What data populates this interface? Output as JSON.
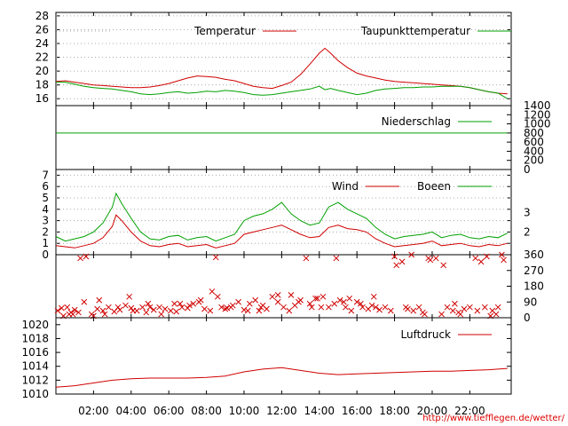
{
  "url": "http://www.tiefflegen.de/wetter/",
  "colors": {
    "red": "#d00000",
    "green": "#00a000",
    "grid": "#888888"
  },
  "chart_data": [
    {
      "type": "line",
      "panel": "temperature",
      "ylim": [
        15,
        28.5
      ],
      "yticks": [
        16,
        18,
        20,
        22,
        24,
        26,
        28
      ],
      "series": [
        {
          "name": "Temperatur",
          "color": "red",
          "x": [
            0,
            0.5,
            1,
            1.5,
            2,
            2.5,
            3,
            3.5,
            4,
            4.5,
            5,
            5.5,
            6,
            6.5,
            7,
            7.5,
            8,
            8.5,
            9,
            9.5,
            10,
            10.5,
            11,
            11.5,
            12,
            12.5,
            13,
            13.5,
            14,
            14.3,
            14.6,
            15,
            15.5,
            16,
            16.5,
            17,
            17.5,
            18,
            18.5,
            19,
            19.5,
            20,
            20.5,
            21,
            21.5,
            22,
            22.5,
            23,
            23.5,
            24
          ],
          "values": [
            18.5,
            18.6,
            18.4,
            18.2,
            18.0,
            17.9,
            17.8,
            17.7,
            17.6,
            17.6,
            17.7,
            17.9,
            18.2,
            18.6,
            19.0,
            19.3,
            19.2,
            19.1,
            18.8,
            18.6,
            18.2,
            17.8,
            17.6,
            17.5,
            17.9,
            18.4,
            19.5,
            21.0,
            22.6,
            23.3,
            22.6,
            21.5,
            20.5,
            19.7,
            19.3,
            19.0,
            18.7,
            18.5,
            18.4,
            18.3,
            18.2,
            18.1,
            18.0,
            17.9,
            17.8,
            17.6,
            17.3,
            17.0,
            16.8,
            16.7
          ]
        },
        {
          "name": "Taupunkttemperatur",
          "color": "green",
          "x": [
            0,
            0.5,
            1,
            1.5,
            2,
            2.5,
            3,
            3.5,
            4,
            4.5,
            5,
            5.5,
            6,
            6.5,
            7,
            7.5,
            8,
            8.5,
            9,
            9.5,
            10,
            10.5,
            11,
            11.5,
            12,
            12.5,
            13,
            13.5,
            14,
            14.3,
            14.6,
            15,
            15.5,
            16,
            16.5,
            17,
            17.5,
            18,
            18.5,
            19,
            19.5,
            20,
            20.5,
            21,
            21.5,
            22,
            22.5,
            23,
            23.5,
            24
          ],
          "values": [
            18.4,
            18.4,
            18.1,
            17.8,
            17.6,
            17.5,
            17.4,
            17.2,
            17.0,
            16.7,
            16.6,
            16.7,
            16.9,
            17.0,
            16.8,
            16.9,
            17.1,
            17.0,
            17.2,
            17.1,
            16.9,
            16.6,
            16.5,
            16.6,
            16.8,
            17.0,
            17.2,
            17.4,
            17.8,
            17.3,
            17.5,
            17.2,
            16.9,
            16.6,
            16.8,
            17.2,
            17.4,
            17.5,
            17.6,
            17.6,
            17.7,
            17.7,
            17.8,
            17.8,
            17.8,
            17.6,
            17.3,
            17.0,
            16.8,
            16.0
          ]
        }
      ]
    },
    {
      "type": "line",
      "panel": "precipitation",
      "ylim": [
        0,
        1400
      ],
      "yticks": [
        0,
        200,
        400,
        600,
        800,
        1000,
        1200,
        1400
      ],
      "series": [
        {
          "name": "Niederschlag",
          "color": "green",
          "x": [
            0,
            24
          ],
          "values": [
            800,
            800
          ]
        }
      ]
    },
    {
      "type": "line",
      "panel": "wind",
      "ylim": [
        0,
        7.5
      ],
      "yticks": [
        0,
        1,
        2,
        3,
        4,
        5,
        6,
        7
      ],
      "right_ticks": [
        {
          "label": "2",
          "value": 2.0
        },
        {
          "label": "3",
          "value": 3.7
        }
      ],
      "series": [
        {
          "name": "Wind",
          "color": "red",
          "x": [
            0,
            0.5,
            1,
            1.5,
            2,
            2.5,
            3,
            3.2,
            3.5,
            4,
            4.5,
            5,
            5.5,
            6,
            6.5,
            7,
            7.5,
            8,
            8.5,
            9,
            9.5,
            10,
            10.5,
            11,
            11.5,
            12,
            12.5,
            13,
            13.5,
            14,
            14.5,
            15,
            15.5,
            16,
            16.5,
            17,
            17.5,
            18,
            18.5,
            19,
            19.5,
            20,
            20.5,
            21,
            21.5,
            22,
            22.5,
            23,
            23.5,
            24
          ],
          "values": [
            0.8,
            0.7,
            0.6,
            0.8,
            1.0,
            1.5,
            2.5,
            3.5,
            3.0,
            2.0,
            1.2,
            0.8,
            0.7,
            0.9,
            1.0,
            0.7,
            0.8,
            0.9,
            0.6,
            0.8,
            1.0,
            1.8,
            2.0,
            2.2,
            2.4,
            2.6,
            2.2,
            1.8,
            1.5,
            1.6,
            2.4,
            2.6,
            2.3,
            2.2,
            2.0,
            1.4,
            1.0,
            0.7,
            0.8,
            0.9,
            1.0,
            1.2,
            0.8,
            0.9,
            1.0,
            0.8,
            0.7,
            0.9,
            0.8,
            1.0
          ]
        },
        {
          "name": "Boeen",
          "color": "green",
          "x": [
            0,
            0.5,
            1,
            1.5,
            2,
            2.5,
            3,
            3.2,
            3.5,
            4,
            4.5,
            5,
            5.5,
            6,
            6.5,
            7,
            7.5,
            8,
            8.5,
            9,
            9.5,
            10,
            10.5,
            11,
            11.5,
            12,
            12.5,
            13,
            13.5,
            14,
            14.5,
            15,
            15.5,
            16,
            16.5,
            17,
            17.5,
            18,
            18.5,
            19,
            19.5,
            20,
            20.5,
            21,
            21.5,
            22,
            22.5,
            23,
            23.5,
            24
          ],
          "values": [
            1.6,
            1.2,
            1.4,
            1.6,
            2.0,
            2.8,
            4.2,
            5.4,
            4.5,
            3.2,
            2.0,
            1.4,
            1.3,
            1.6,
            1.7,
            1.3,
            1.5,
            1.6,
            1.2,
            1.5,
            1.8,
            3.0,
            3.4,
            3.6,
            4.0,
            4.6,
            3.6,
            3.0,
            2.6,
            2.8,
            4.2,
            4.6,
            4.0,
            3.6,
            3.2,
            2.4,
            1.8,
            1.4,
            1.6,
            1.7,
            1.8,
            2.0,
            1.5,
            1.7,
            1.8,
            1.5,
            1.4,
            1.6,
            1.5,
            1.9
          ]
        }
      ]
    },
    {
      "type": "scatter",
      "panel": "wind-direction",
      "ylim": [
        0,
        360
      ],
      "yticks": [
        0,
        90,
        180,
        270,
        360
      ],
      "series": [
        {
          "name": "",
          "color": "red",
          "x": [
            0.1,
            0.3,
            0.6,
            0.8,
            1.0,
            1.3,
            1.6,
            1.9,
            2.2,
            2.5,
            2.8,
            3.1,
            3.4,
            3.7,
            4.0,
            4.3,
            4.6,
            4.9,
            5.2,
            5.5,
            5.8,
            6.1,
            6.4,
            6.7,
            7.0,
            7.3,
            7.6,
            7.9,
            8.2,
            8.5,
            8.8,
            9.1,
            9.4,
            9.7,
            10.0,
            10.3,
            10.6,
            10.9,
            11.2,
            11.5,
            11.8,
            12.1,
            12.4,
            12.7,
            13.0,
            13.3,
            13.6,
            13.9,
            14.2,
            14.5,
            14.8,
            15.1,
            15.4,
            15.7,
            16.0,
            16.3,
            16.6,
            16.9,
            17.2,
            17.5,
            17.8,
            18.1,
            18.4,
            18.7,
            19.0,
            19.3,
            19.6,
            19.9,
            20.2,
            20.5,
            20.8,
            21.1,
            21.4,
            21.7,
            22.0,
            22.3,
            22.6,
            22.9,
            23.2,
            23.5,
            23.8,
            0.4,
            0.7,
            1.2,
            2.0,
            2.6,
            3.3,
            4.1,
            4.8,
            5.6,
            6.3,
            7.1,
            7.7,
            8.6,
            9.3,
            10.2,
            11.0,
            11.8,
            12.9,
            13.5,
            14.1,
            14.9,
            15.6,
            16.2,
            17.0,
            18.0,
            18.9,
            19.8,
            20.6,
            21.5,
            22.4,
            23.1,
            23.7,
            0.9,
            1.5,
            2.3,
            3.9,
            5.0,
            6.6,
            8.3,
            9.0,
            10.8,
            12.5,
            13.8,
            15.3,
            16.8,
            18.6,
            19.5,
            21.2,
            22.8,
            23.4
          ],
          "values": [
            40,
            55,
            60,
            30,
            45,
            340,
            350,
            20,
            50,
            40,
            60,
            35,
            45,
            70,
            55,
            40,
            60,
            80,
            45,
            60,
            50,
            40,
            35,
            60,
            55,
            80,
            90,
            50,
            40,
            345,
            60,
            55,
            70,
            90,
            45,
            80,
            100,
            60,
            50,
            120,
            90,
            60,
            40,
            70,
            100,
            340,
            60,
            110,
            120,
            60,
            80,
            100,
            60,
            40,
            90,
            60,
            50,
            120,
            45,
            60,
            40,
            300,
            320,
            50,
            40,
            60,
            20,
            330,
            340,
            20,
            60,
            40,
            30,
            50,
            60,
            340,
            320,
            350,
            40,
            60,
            330,
            10,
            20,
            30,
            10,
            20,
            60,
            40,
            30,
            20,
            80,
            70,
            100,
            120,
            60,
            40,
            70,
            130,
            90,
            80,
            60,
            340,
            110,
            80,
            60,
            350,
            360,
            340,
            300,
            20,
            40,
            10,
            360,
            20,
            90,
            100,
            120,
            60,
            80,
            150,
            50,
            40,
            130,
            110,
            90,
            70,
            60,
            30,
            80,
            60,
            20
          ]
        }
      ]
    },
    {
      "type": "line",
      "panel": "pressure",
      "ylim": [
        1010,
        1021
      ],
      "yticks": [
        1010,
        1012,
        1014,
        1016,
        1018,
        1020
      ],
      "series": [
        {
          "name": "Luftdruck",
          "color": "red",
          "x": [
            0,
            1,
            2,
            3,
            4,
            5,
            6,
            7,
            8,
            9,
            10,
            11,
            12,
            13,
            14,
            15,
            16,
            17,
            18,
            19,
            20,
            21,
            22,
            23,
            24
          ],
          "values": [
            1011.0,
            1011.2,
            1011.6,
            1012.0,
            1012.2,
            1012.3,
            1012.3,
            1012.3,
            1012.4,
            1012.6,
            1013.2,
            1013.6,
            1013.8,
            1013.4,
            1013.0,
            1012.8,
            1012.9,
            1013.0,
            1013.1,
            1013.2,
            1013.3,
            1013.3,
            1013.4,
            1013.5,
            1013.7
          ]
        }
      ]
    }
  ],
  "x_axis": {
    "xlim": [
      0,
      24.2
    ],
    "ticks": [
      {
        "label": "02:00",
        "value": 2
      },
      {
        "label": "04:00",
        "value": 4
      },
      {
        "label": "06:00",
        "value": 6
      },
      {
        "label": "08:00",
        "value": 8
      },
      {
        "label": "10:00",
        "value": 10
      },
      {
        "label": "12:00",
        "value": 12
      },
      {
        "label": "14:00",
        "value": 14
      },
      {
        "label": "16:00",
        "value": 16
      },
      {
        "label": "18:00",
        "value": 18
      },
      {
        "label": "20:00",
        "value": 20
      },
      {
        "label": "22:00",
        "value": 22
      }
    ]
  }
}
